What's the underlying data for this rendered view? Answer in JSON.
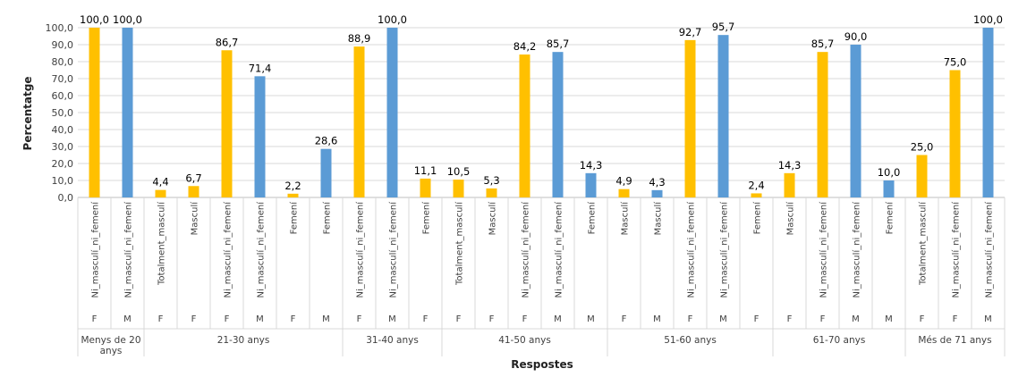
{
  "chart_data": {
    "type": "bar",
    "ylabel": "Percentatge",
    "xlabel": "Respostes",
    "ylim": [
      0,
      100
    ],
    "ytick_step": 10,
    "grid": true,
    "colors": {
      "F": "#FFC000",
      "M": "#5B9BD5"
    },
    "groups": [
      {
        "label": "Menys de 20 anys",
        "label_lines": [
          "Menys de 20",
          "anys"
        ],
        "bars": [
          {
            "category": "Ni_masculí_ni_femení",
            "sex": "F",
            "value": 100.0,
            "value_label": "100,0"
          },
          {
            "category": "Ni_masculí_ni_femení",
            "sex": "M",
            "value": 100.0,
            "value_label": "100,0"
          }
        ]
      },
      {
        "label": "21-30 anys",
        "label_lines": [
          "21-30 anys"
        ],
        "bars": [
          {
            "category": "Totalment_masculí",
            "sex": "F",
            "value": 4.4,
            "value_label": "4,4"
          },
          {
            "category": "Masculí",
            "sex": "F",
            "value": 6.7,
            "value_label": "6,7"
          },
          {
            "category": "Ni_masculí_ni_femení",
            "sex": "F",
            "value": 86.7,
            "value_label": "86,7"
          },
          {
            "category": "Ni_masculí_ni_femení",
            "sex": "M",
            "value": 71.4,
            "value_label": "71,4"
          },
          {
            "category": "Femení",
            "sex": "F",
            "value": 2.2,
            "value_label": "2,2"
          },
          {
            "category": "Femení",
            "sex": "M",
            "value": 28.6,
            "value_label": "28,6"
          }
        ]
      },
      {
        "label": "31-40 anys",
        "label_lines": [
          "31-40 anys"
        ],
        "bars": [
          {
            "category": "Ni_masculí_ni_femení",
            "sex": "F",
            "value": 88.9,
            "value_label": "88,9"
          },
          {
            "category": "Ni_masculí_ni_femení",
            "sex": "M",
            "value": 100.0,
            "value_label": "100,0"
          },
          {
            "category": "Femení",
            "sex": "F",
            "value": 11.1,
            "value_label": "11,1"
          }
        ]
      },
      {
        "label": "41-50 anys",
        "label_lines": [
          "41-50 anys"
        ],
        "bars": [
          {
            "category": "Totalment_masculí",
            "sex": "F",
            "value": 10.5,
            "value_label": "10,5"
          },
          {
            "category": "Masculí",
            "sex": "F",
            "value": 5.3,
            "value_label": "5,3"
          },
          {
            "category": "Ni_masculí_ni_femení",
            "sex": "F",
            "value": 84.2,
            "value_label": "84,2"
          },
          {
            "category": "Ni_masculí_ni_femení",
            "sex": "M",
            "value": 85.7,
            "value_label": "85,7"
          },
          {
            "category": "Femení",
            "sex": "M",
            "value": 14.3,
            "value_label": "14,3"
          }
        ]
      },
      {
        "label": "51-60 anys",
        "label_lines": [
          "51-60 anys"
        ],
        "bars": [
          {
            "category": "Masculí",
            "sex": "F",
            "value": 4.9,
            "value_label": "4,9"
          },
          {
            "category": "Masculí",
            "sex": "M",
            "value": 4.3,
            "value_label": "4,3"
          },
          {
            "category": "Ni_masculí_ni_femení",
            "sex": "F",
            "value": 92.7,
            "value_label": "92,7"
          },
          {
            "category": "Ni_masculí_ni_femení",
            "sex": "M",
            "value": 95.7,
            "value_label": "95,7"
          },
          {
            "category": "Femení",
            "sex": "F",
            "value": 2.4,
            "value_label": "2,4"
          }
        ]
      },
      {
        "label": "61-70 anys",
        "label_lines": [
          "61-70 anys"
        ],
        "bars": [
          {
            "category": "Masculí",
            "sex": "F",
            "value": 14.3,
            "value_label": "14,3"
          },
          {
            "category": "Ni_masculí_ni_femení",
            "sex": "F",
            "value": 85.7,
            "value_label": "85,7"
          },
          {
            "category": "Ni_masculí_ni_femení",
            "sex": "M",
            "value": 90.0,
            "value_label": "90,0"
          },
          {
            "category": "Femení",
            "sex": "M",
            "value": 10.0,
            "value_label": "10,0"
          }
        ]
      },
      {
        "label": "Més de 71 anys",
        "label_lines": [
          "Més de 71 anys"
        ],
        "bars": [
          {
            "category": "Totalment_masculí",
            "sex": "F",
            "value": 25.0,
            "value_label": "25,0"
          },
          {
            "category": "Ni_masculí_ni_femení",
            "sex": "F",
            "value": 75.0,
            "value_label": "75,0"
          },
          {
            "category": "Ni_masculí_ni_femení",
            "sex": "M",
            "value": 100.0,
            "value_label": "100,0"
          }
        ]
      }
    ]
  }
}
